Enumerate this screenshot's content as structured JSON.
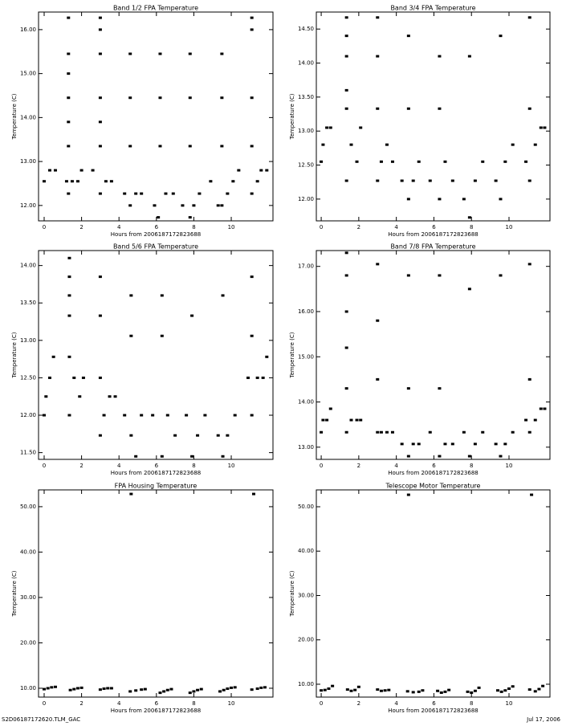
{
  "chart_data": [
    {
      "type": "scatter",
      "title": "Band 1/2 FPA Temperature",
      "x_label": "Hours from 2006187172823688",
      "y_label": "Temperature (C)",
      "color": "#000000",
      "xlim": [
        -0.3,
        12.23
      ],
      "ylim": [
        11.65,
        16.4
      ],
      "xticks": [
        0,
        2,
        4,
        6,
        8,
        10
      ],
      "yticks": [
        {
          "value": 12,
          "label": "12.00"
        },
        {
          "value": 13,
          "label": "13.00"
        },
        {
          "value": 14,
          "label": "14.00"
        },
        {
          "value": 15,
          "label": "15.00"
        },
        {
          "value": 16,
          "label": "16.00"
        }
      ],
      "x": [
        0,
        0.3,
        0.6,
        1.2,
        1.3,
        1.3,
        1.3,
        1.3,
        1.3,
        1.3,
        1.3,
        1.5,
        1.8,
        2.0,
        2.6,
        3.0,
        3.0,
        3.0,
        3.0,
        3.0,
        3.0,
        3.0,
        3.3,
        3.6,
        4.3,
        4.6,
        4.6,
        4.6,
        4.6,
        4.9,
        5.2,
        5.9,
        6.1,
        6.2,
        6.2,
        6.2,
        6.5,
        6.9,
        7.4,
        7.8,
        7.8,
        7.8,
        7.8,
        8.0,
        8.3,
        8.9,
        9.3,
        9.5,
        9.5,
        9.5,
        9.5,
        9.8,
        10.1,
        10.4,
        11.1,
        11.1,
        11.1,
        11.1,
        11.1,
        11.4,
        11.6,
        11.9
      ],
      "y": [
        12.55,
        12.8,
        12.8,
        12.55,
        12.27,
        13.35,
        13.9,
        14.45,
        15.0,
        15.45,
        16.27,
        12.55,
        12.55,
        12.8,
        12.8,
        12.27,
        13.35,
        13.9,
        14.45,
        15.45,
        16.0,
        16.27,
        12.55,
        12.55,
        12.27,
        12.0,
        13.35,
        14.45,
        15.45,
        12.27,
        12.27,
        12.0,
        11.73,
        13.35,
        14.45,
        15.45,
        12.27,
        12.27,
        12.0,
        11.73,
        13.35,
        14.45,
        15.45,
        12.0,
        12.27,
        12.55,
        12.0,
        12.0,
        13.35,
        14.45,
        15.45,
        12.27,
        12.55,
        12.8,
        12.27,
        13.35,
        14.45,
        16.0,
        16.27,
        12.55,
        12.8,
        12.8
      ]
    },
    {
      "type": "scatter",
      "title": "Band 3/4 FPA Temperature",
      "x_label": "Hours from 2006187172823688",
      "y_label": "Temperature (C)",
      "color": "#000000",
      "xlim": [
        -0.26,
        12.18
      ],
      "ylim": [
        11.68,
        14.75
      ],
      "xticks": [
        0,
        2,
        4,
        6,
        8,
        10
      ],
      "yticks": [
        {
          "value": 12,
          "label": "12.00"
        },
        {
          "value": 12.5,
          "label": "12.50"
        },
        {
          "value": 13,
          "label": "13.00"
        },
        {
          "value": 13.5,
          "label": "13.50"
        },
        {
          "value": 14,
          "label": "14.00"
        },
        {
          "value": 14.5,
          "label": "14.50"
        }
      ],
      "x": [
        0,
        0.1,
        0.3,
        0.5,
        1.35,
        1.35,
        1.35,
        1.35,
        1.35,
        1.35,
        1.6,
        1.9,
        2.1,
        3.0,
        3.0,
        3.0,
        3.0,
        3.2,
        3.5,
        3.8,
        4.3,
        4.65,
        4.65,
        4.65,
        4.9,
        5.2,
        5.8,
        6.3,
        6.3,
        6.3,
        6.6,
        7.0,
        7.6,
        7.9,
        7.9,
        8.2,
        8.6,
        9.3,
        9.55,
        9.55,
        9.8,
        10.2,
        10.9,
        11.1,
        11.1,
        11.1,
        11.4,
        11.7,
        11.9
      ],
      "y": [
        12.55,
        12.8,
        13.05,
        13.05,
        12.27,
        13.33,
        13.6,
        14.1,
        14.4,
        14.67,
        12.8,
        12.55,
        13.05,
        12.27,
        13.33,
        14.1,
        14.67,
        12.55,
        12.8,
        12.55,
        12.27,
        12.0,
        13.33,
        14.4,
        12.27,
        12.55,
        12.27,
        12.0,
        13.33,
        14.1,
        12.55,
        12.27,
        12.0,
        11.73,
        14.1,
        12.27,
        12.55,
        12.27,
        12.0,
        14.4,
        12.55,
        12.8,
        12.55,
        12.27,
        13.33,
        14.67,
        12.8,
        13.05,
        13.05
      ]
    },
    {
      "type": "scatter",
      "title": "Band 5/6 FPA Temperature",
      "x_label": "Hours from 2006187172823688",
      "y_label": "Temperature (C)",
      "color": "#000000",
      "xlim": [
        -0.3,
        12.23
      ],
      "ylim": [
        11.41,
        14.2
      ],
      "xticks": [
        0,
        2,
        4,
        6,
        8,
        10
      ],
      "yticks": [
        {
          "value": 11.5,
          "label": "11.50"
        },
        {
          "value": 12,
          "label": "12.00"
        },
        {
          "value": 12.5,
          "label": "12.50"
        },
        {
          "value": 13,
          "label": "13.00"
        },
        {
          "value": 13.5,
          "label": "13.50"
        },
        {
          "value": 14,
          "label": "14.00"
        }
      ],
      "x": [
        0,
        0.1,
        0.3,
        0.5,
        1.35,
        1.35,
        1.35,
        1.35,
        1.35,
        1.35,
        1.6,
        1.9,
        2.1,
        3.0,
        3.0,
        3.0,
        3.0,
        3.2,
        3.5,
        3.8,
        4.3,
        4.65,
        4.65,
        4.65,
        4.9,
        5.2,
        5.8,
        6.3,
        6.3,
        6.3,
        6.6,
        7.0,
        7.6,
        7.9,
        7.9,
        8.2,
        8.6,
        9.3,
        9.55,
        9.55,
        9.8,
        10.2,
        10.9,
        11.1,
        11.1,
        11.1,
        11.4,
        11.7,
        11.9
      ],
      "y": [
        12.0,
        12.25,
        12.5,
        12.78,
        12.0,
        12.78,
        13.33,
        13.6,
        13.85,
        14.1,
        12.5,
        12.25,
        12.5,
        11.73,
        12.5,
        13.33,
        13.85,
        12.0,
        12.25,
        12.25,
        12.0,
        11.73,
        13.06,
        13.6,
        11.45,
        12.0,
        12.0,
        11.45,
        13.06,
        13.6,
        12.0,
        11.73,
        12.0,
        11.45,
        13.33,
        11.73,
        12.0,
        11.73,
        11.45,
        13.6,
        11.73,
        12.0,
        12.5,
        12.0,
        13.06,
        13.85,
        12.5,
        12.5,
        12.78
      ]
    },
    {
      "type": "scatter",
      "title": "Band 7/8 FPA Temperature",
      "x_label": "Hours from 2006187172823688",
      "y_label": "Temperature (C)",
      "color": "#000000",
      "xlim": [
        -0.26,
        12.18
      ],
      "ylim": [
        12.73,
        17.35
      ],
      "xticks": [
        0,
        2,
        4,
        6,
        8,
        10
      ],
      "yticks": [
        {
          "value": 13,
          "label": "13.00"
        },
        {
          "value": 14,
          "label": "14.00"
        },
        {
          "value": 15,
          "label": "15.00"
        },
        {
          "value": 16,
          "label": "16.00"
        },
        {
          "value": 17,
          "label": "17.00"
        }
      ],
      "x": [
        0,
        0.1,
        0.3,
        0.5,
        1.35,
        1.35,
        1.35,
        1.35,
        1.35,
        1.35,
        1.6,
        1.9,
        2.1,
        3.0,
        3.0,
        3.0,
        3.0,
        3.2,
        3.5,
        3.8,
        4.3,
        4.65,
        4.65,
        4.65,
        4.9,
        5.2,
        5.8,
        6.3,
        6.3,
        6.3,
        6.6,
        7.0,
        7.6,
        7.9,
        7.9,
        8.2,
        8.6,
        9.3,
        9.55,
        9.55,
        9.8,
        10.2,
        10.9,
        11.1,
        11.1,
        11.1,
        11.4,
        11.7,
        11.9
      ],
      "y": [
        13.33,
        13.6,
        13.6,
        13.85,
        13.33,
        14.3,
        15.2,
        16.0,
        16.8,
        17.3,
        13.6,
        13.6,
        13.6,
        13.33,
        14.5,
        15.8,
        17.05,
        13.33,
        13.33,
        13.33,
        13.07,
        12.8,
        14.3,
        16.8,
        13.07,
        13.07,
        13.33,
        12.8,
        14.3,
        16.8,
        13.07,
        13.07,
        13.33,
        12.8,
        16.5,
        13.07,
        13.33,
        13.07,
        12.8,
        16.8,
        13.07,
        13.33,
        13.6,
        13.33,
        14.5,
        17.05,
        13.6,
        13.85,
        13.85
      ]
    },
    {
      "type": "scatter",
      "title": "FPA Housing Temperature",
      "x_label": "Hours from 2006187172823688",
      "y_label": "Temperature (C)",
      "color": "#000000",
      "xlim": [
        -0.3,
        12.23
      ],
      "ylim": [
        8.05,
        53.7
      ],
      "xticks": [
        0,
        2,
        4,
        6,
        8,
        10
      ],
      "yticks": [
        {
          "value": 10,
          "label": "10.00"
        },
        {
          "value": 20,
          "label": "20.00"
        },
        {
          "value": 30,
          "label": "30.00"
        },
        {
          "value": 40,
          "label": "40.00"
        },
        {
          "value": 50,
          "label": "50.00"
        }
      ],
      "x": [
        0,
        0.2,
        0.4,
        0.6,
        1.4,
        1.6,
        1.8,
        2.0,
        3.0,
        3.2,
        3.4,
        3.6,
        4.6,
        4.65,
        4.9,
        5.2,
        5.4,
        6.2,
        6.4,
        6.6,
        6.8,
        7.8,
        8.0,
        8.2,
        8.4,
        9.4,
        9.6,
        9.8,
        10.0,
        10.2,
        11.1,
        11.2,
        11.4,
        11.6,
        11.8
      ],
      "y": [
        9.8,
        10.0,
        10.2,
        10.3,
        9.6,
        9.8,
        10.0,
        10.1,
        9.7,
        9.9,
        10.0,
        10.0,
        9.3,
        52.8,
        9.5,
        9.7,
        9.8,
        9.0,
        9.3,
        9.6,
        9.8,
        9.0,
        9.3,
        9.6,
        9.8,
        9.3,
        9.6,
        9.9,
        10.1,
        10.2,
        9.7,
        52.8,
        9.9,
        10.1,
        10.2
      ]
    },
    {
      "type": "scatter",
      "title": "Telescope Motor Temperature",
      "x_label": "Hours from 2006187172823688",
      "y_label": "Temperature (C)",
      "color": "#000000",
      "xlim": [
        -0.26,
        12.18
      ],
      "ylim": [
        7.1,
        53.8
      ],
      "xticks": [
        0,
        2,
        4,
        6,
        8,
        10
      ],
      "yticks": [
        {
          "value": 10,
          "label": "10.00"
        },
        {
          "value": 20,
          "label": "20.00"
        },
        {
          "value": 30,
          "label": "30.00"
        },
        {
          "value": 40,
          "label": "40.00"
        },
        {
          "value": 50,
          "label": "50.00"
        }
      ],
      "x": [
        0,
        0.2,
        0.4,
        0.6,
        1.4,
        1.6,
        1.8,
        2.0,
        3.0,
        3.2,
        3.4,
        3.6,
        4.6,
        4.65,
        4.9,
        5.2,
        5.4,
        6.2,
        6.4,
        6.6,
        6.8,
        7.8,
        8.0,
        8.2,
        8.4,
        9.4,
        9.6,
        9.8,
        10.0,
        10.2,
        11.1,
        11.2,
        11.4,
        11.6,
        11.8
      ],
      "y": [
        8.6,
        8.7,
        9.0,
        9.6,
        8.8,
        8.5,
        8.7,
        9.4,
        8.8,
        8.5,
        8.6,
        8.7,
        8.4,
        52.7,
        8.2,
        8.3,
        8.6,
        8.5,
        8.1,
        8.3,
        8.7,
        8.3,
        8.1,
        8.5,
        9.2,
        8.6,
        8.3,
        8.6,
        9.0,
        9.5,
        8.8,
        52.7,
        8.4,
        8.9,
        9.6
      ]
    }
  ],
  "footer": {
    "left": "S2D06187172620.TLM_GAC",
    "right": "Jul 17, 2006"
  }
}
